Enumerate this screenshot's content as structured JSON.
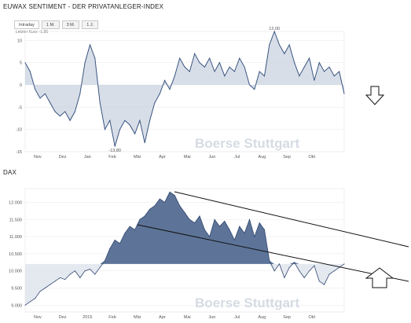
{
  "page": {
    "sentiment_title": "EUWAX SENTIMENT - DER PRIVATANLEGER-INDEX",
    "dax_title": "DAX",
    "tabs": [
      "Intraday",
      "1 M.",
      "3 M.",
      "1 J."
    ],
    "last_price": "Letzter Kurs: -1,86",
    "watermark": "Boerse Stuttgart",
    "arrow_down_icon": "hollow-arrow-down",
    "arrow_up_icon": "hollow-arrow-up"
  },
  "chart_data": [
    {
      "type": "area",
      "title": "EUWAX SENTIMENT - DER PRIVATANLEGER-INDEX",
      "baseline": 0,
      "ylim": [
        -15,
        12
      ],
      "yticks": [
        10,
        5,
        0,
        -5,
        -10,
        -15
      ],
      "ytick_labels": [
        "10",
        "5",
        "0",
        "-5",
        "-10",
        "-15"
      ],
      "xlim": [
        0,
        12.8
      ],
      "xticks": [
        0.5,
        1.5,
        2.5,
        3.5,
        4.5,
        5.5,
        6.5,
        7.5,
        8.5,
        9.5,
        10.5,
        11.5
      ],
      "xtick_labels": [
        "Nov",
        "Dez",
        "Jan",
        "Feb",
        "Mär",
        "Apr",
        "Mai",
        "Jun",
        "Jul",
        "Aug",
        "Sep",
        "Okt"
      ],
      "annotations": [
        {
          "text": "12,00",
          "x": 10.0,
          "y": 12.0
        },
        {
          "text": "-13,80",
          "x": 3.6,
          "y": -13.8
        }
      ],
      "x": [
        0.0,
        0.2,
        0.4,
        0.6,
        0.8,
        1.0,
        1.2,
        1.4,
        1.6,
        1.8,
        2.0,
        2.2,
        2.4,
        2.6,
        2.8,
        3.0,
        3.2,
        3.4,
        3.6,
        3.8,
        4.0,
        4.2,
        4.4,
        4.6,
        4.8,
        5.0,
        5.2,
        5.4,
        5.6,
        5.8,
        6.0,
        6.2,
        6.4,
        6.6,
        6.8,
        7.0,
        7.2,
        7.4,
        7.6,
        7.8,
        8.0,
        8.2,
        8.4,
        8.6,
        8.8,
        9.0,
        9.2,
        9.4,
        9.6,
        9.8,
        10.0,
        10.2,
        10.4,
        10.6,
        10.8,
        11.0,
        11.2,
        11.4,
        11.6,
        11.8,
        12.0,
        12.2,
        12.4,
        12.6,
        12.8
      ],
      "values": [
        5,
        3,
        -1,
        -3,
        -2,
        -4,
        -6,
        -7,
        -6,
        -8,
        -6,
        -2,
        5,
        9,
        6,
        -4,
        -10,
        -8,
        -13.8,
        -10,
        -8,
        -9,
        -11,
        -8,
        -13,
        -8,
        -4,
        -2,
        1,
        -1,
        2,
        6,
        4,
        3,
        7,
        5,
        4,
        6,
        3,
        5,
        2,
        4,
        3,
        6,
        4,
        0,
        -1,
        3,
        2,
        9,
        12,
        9,
        7,
        9,
        5,
        2,
        4,
        6,
        1,
        5,
        3,
        4,
        2,
        3,
        -2
      ]
    },
    {
      "type": "area",
      "title": "DAX",
      "baseline": 10200,
      "ylim": [
        8800,
        12400
      ],
      "yticks": [
        12000,
        11500,
        11000,
        10500,
        10000,
        9500,
        9000
      ],
      "ytick_labels": [
        "12.000",
        "11.500",
        "11.000",
        "10.500",
        "10.000",
        "9.500",
        "9.000"
      ],
      "xlim": [
        0,
        12.8
      ],
      "xticks": [
        0.5,
        1.5,
        2.5,
        3.5,
        4.5,
        5.5,
        6.5,
        7.5,
        8.5,
        9.5,
        10.5,
        11.5
      ],
      "xtick_labels": [
        "Nov",
        "Dez",
        "2015",
        "Feb",
        "Mär",
        "Apr",
        "Mai",
        "Jun",
        "Jul",
        "Aug",
        "Sep",
        "Okt"
      ],
      "x": [
        0.0,
        0.2,
        0.4,
        0.6,
        0.8,
        1.0,
        1.2,
        1.4,
        1.6,
        1.8,
        2.0,
        2.2,
        2.4,
        2.6,
        2.8,
        3.0,
        3.2,
        3.4,
        3.6,
        3.8,
        4.0,
        4.2,
        4.4,
        4.6,
        4.8,
        5.0,
        5.2,
        5.4,
        5.6,
        5.8,
        6.0,
        6.2,
        6.4,
        6.6,
        6.8,
        7.0,
        7.2,
        7.4,
        7.6,
        7.8,
        8.0,
        8.2,
        8.4,
        8.6,
        8.8,
        9.0,
        9.2,
        9.4,
        9.6,
        9.8,
        10.0,
        10.2,
        10.4,
        10.6,
        10.8,
        11.0,
        11.2,
        11.4,
        11.6,
        11.8,
        12.0,
        12.2,
        12.4,
        12.6,
        12.8
      ],
      "values": [
        9000,
        9100,
        9200,
        9400,
        9500,
        9600,
        9700,
        9800,
        9750,
        9900,
        10000,
        9800,
        10000,
        10050,
        9900,
        10100,
        10300,
        10650,
        10900,
        10800,
        11100,
        11300,
        11200,
        11500,
        11600,
        11800,
        11900,
        12100,
        12000,
        12300,
        12200,
        11900,
        11700,
        11500,
        11400,
        11600,
        11200,
        11000,
        11500,
        11300,
        11450,
        11200,
        10900,
        11300,
        11100,
        11500,
        11000,
        11400,
        11200,
        10300,
        10000,
        10200,
        9800,
        10100,
        10250,
        10000,
        9800,
        10000,
        10150,
        9700,
        9600,
        9900,
        10000,
        10100,
        10200
      ]
    }
  ]
}
